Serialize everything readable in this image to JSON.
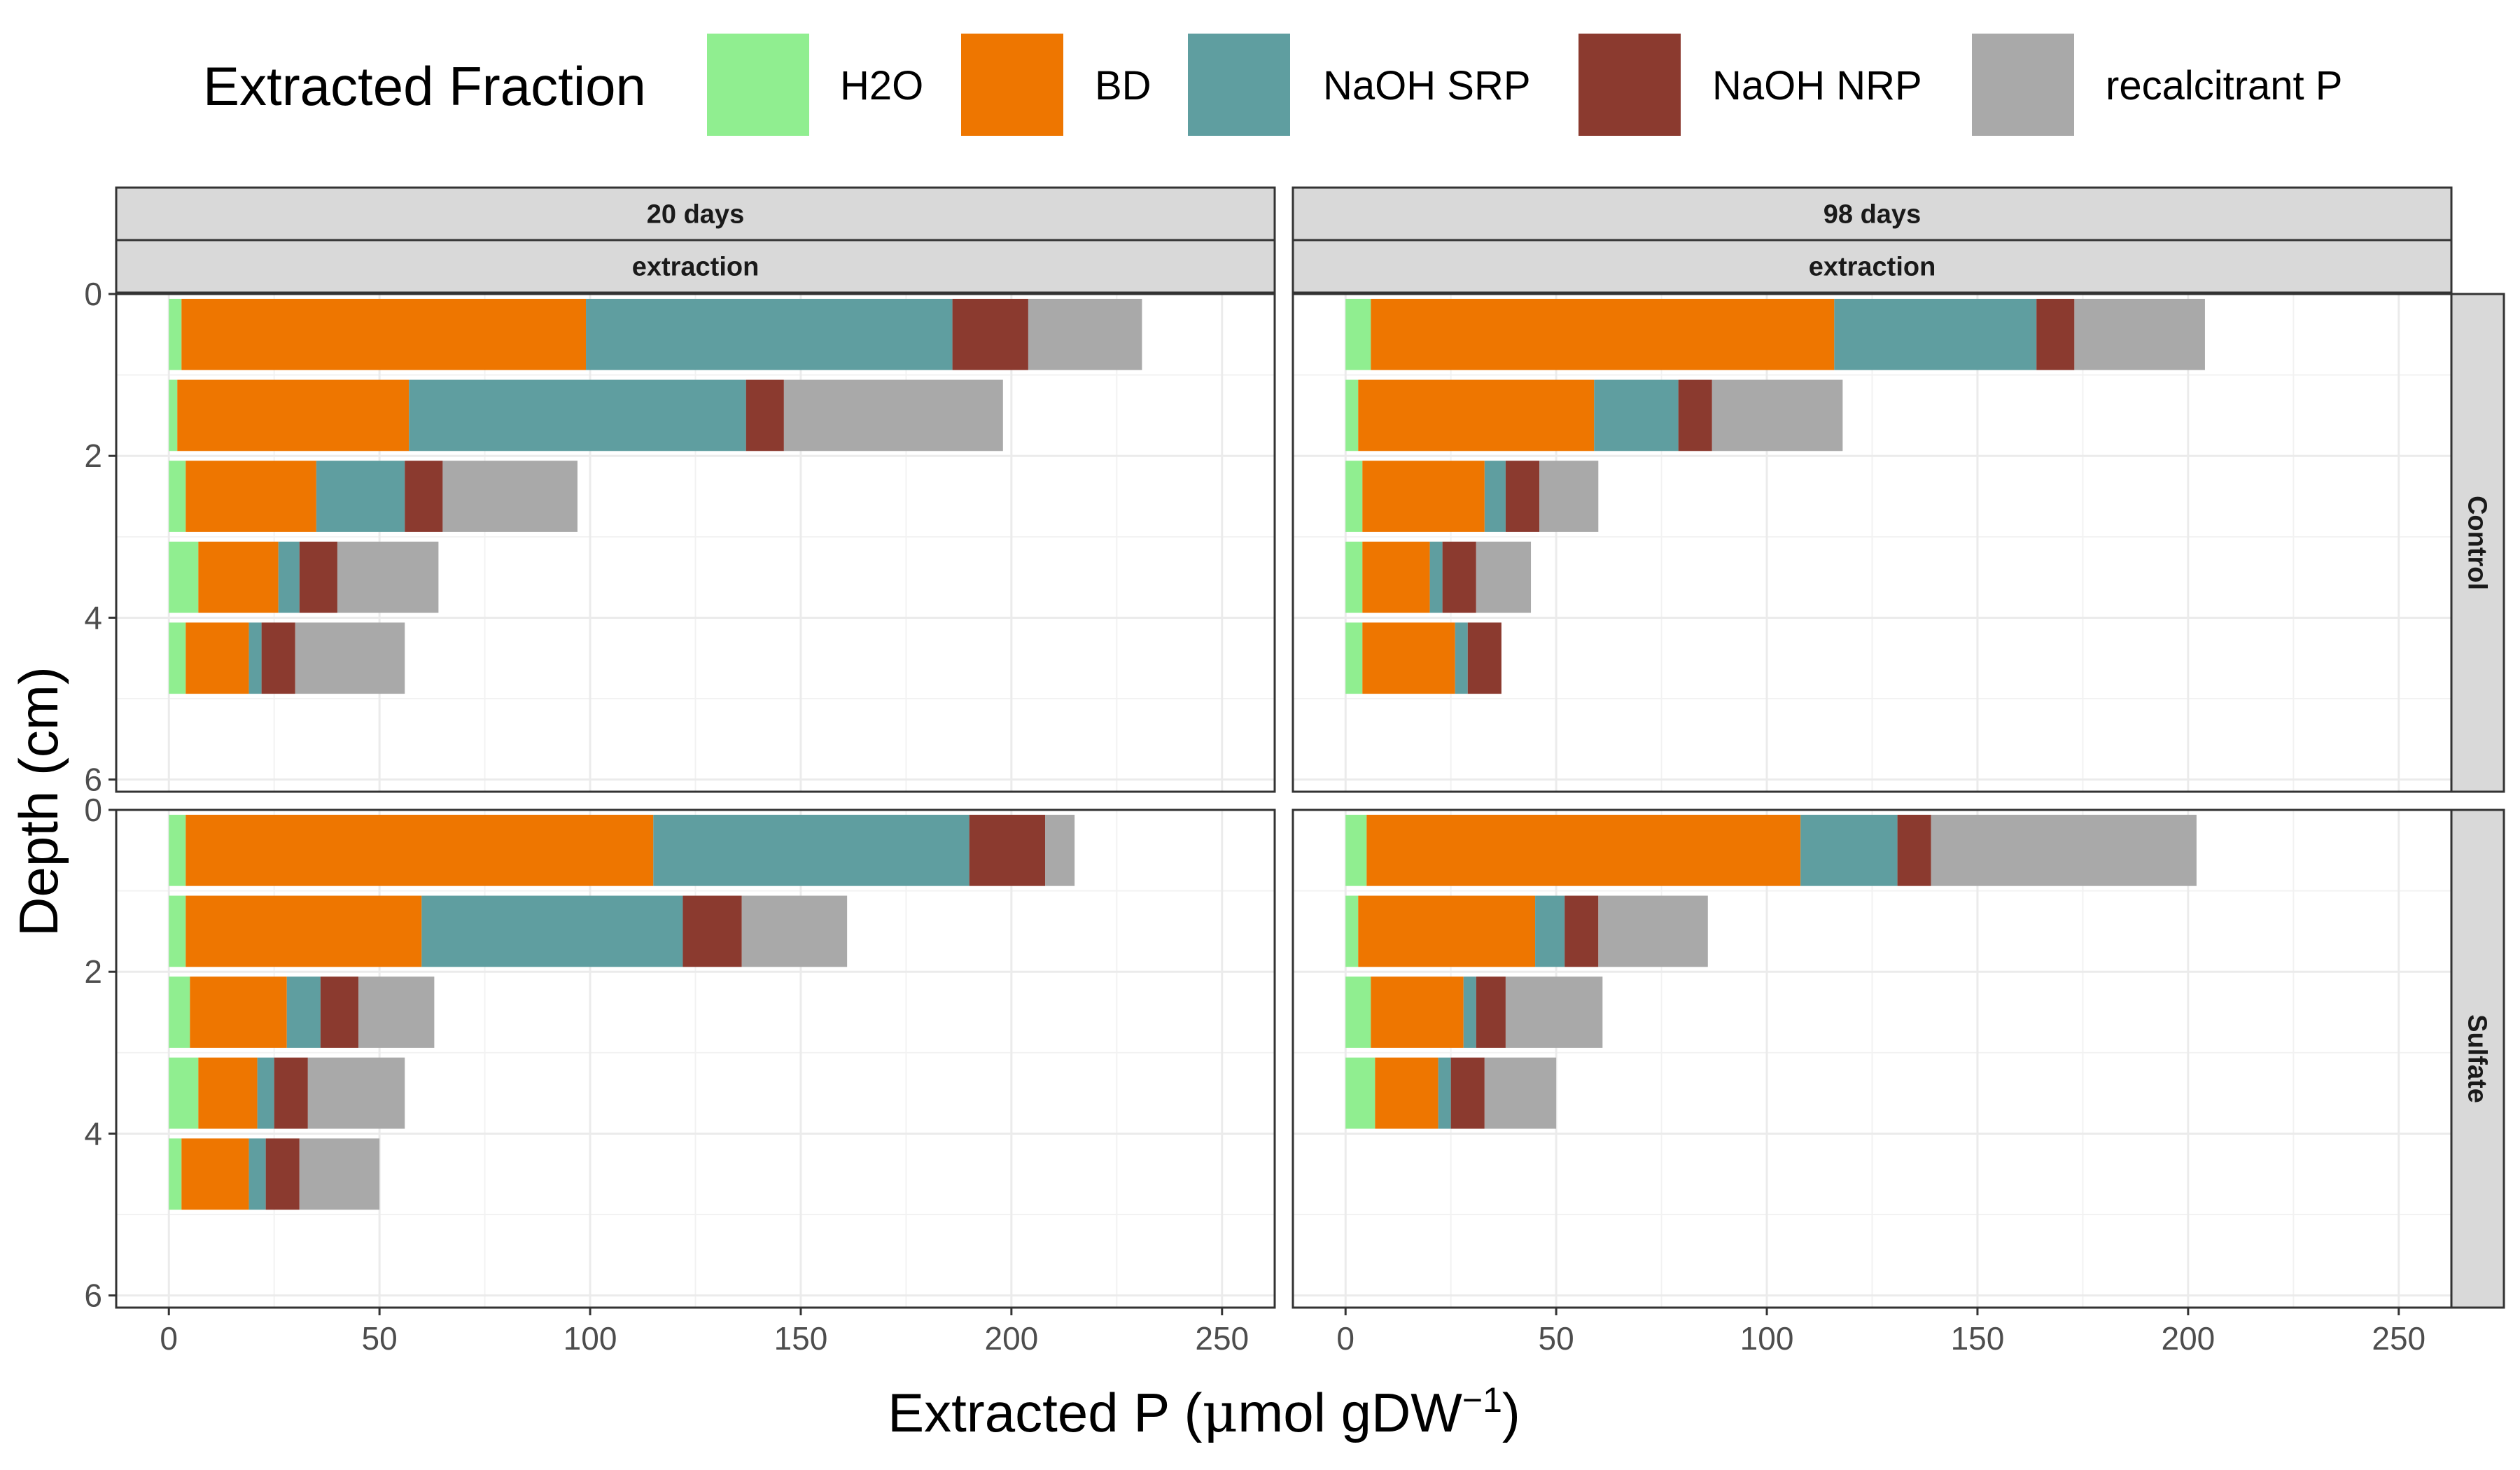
{
  "chart_data": {
    "type": "bar",
    "orientation": "horizontal",
    "stacked": true,
    "title": "",
    "xlabel_main": "Extracted P (",
    "xlabel_mu": "μ",
    "xlabel_unit": "mol gDW",
    "xlabel_sup": "−1",
    "xlabel_close": ")",
    "ylabel": "Depth (cm)",
    "xlim": [
      -12.5,
      262.5
    ],
    "ylim": [
      0,
      6.15
    ],
    "x_ticks": [
      0,
      50,
      100,
      150,
      200,
      250
    ],
    "y_ticks": [
      0,
      2,
      4,
      6
    ],
    "legend": {
      "title": "Extracted Fraction",
      "position": "top"
    },
    "series": [
      {
        "name": "H2O",
        "color": "#90EE90"
      },
      {
        "name": "BD",
        "color": "#EE7600"
      },
      {
        "name": "NaOH SRP",
        "color": "#5F9EA0"
      },
      {
        "name": "NaOH NRP",
        "color": "#8B3A2F"
      },
      {
        "name": "recalcitrant P",
        "color": "#A9A9A9"
      }
    ],
    "strip_row_label": "extraction",
    "panels": [
      {
        "col_label": "20 days",
        "row_label": "Control",
        "bars": [
          {
            "depth": 0.5,
            "values": [
              3,
              96,
              87,
              18,
              27
            ]
          },
          {
            "depth": 1.5,
            "values": [
              2,
              55,
              80,
              9,
              52
            ]
          },
          {
            "depth": 2.5,
            "values": [
              4,
              31,
              21,
              9,
              32
            ]
          },
          {
            "depth": 3.5,
            "values": [
              7,
              19,
              5,
              9,
              24
            ]
          },
          {
            "depth": 4.5,
            "values": [
              4,
              15,
              3,
              8,
              26
            ]
          }
        ]
      },
      {
        "col_label": "98 days",
        "row_label": "Control",
        "bars": [
          {
            "depth": 0.5,
            "values": [
              6,
              110,
              48,
              9,
              31
            ]
          },
          {
            "depth": 1.5,
            "values": [
              3,
              56,
              20,
              8,
              31
            ]
          },
          {
            "depth": 2.5,
            "values": [
              4,
              29,
              5,
              8,
              14
            ]
          },
          {
            "depth": 3.5,
            "values": [
              4,
              16,
              3,
              8,
              13
            ]
          },
          {
            "depth": 4.5,
            "values": [
              4,
              22,
              3,
              8,
              0
            ]
          }
        ]
      },
      {
        "col_label": "20 days",
        "row_label": "Sulfate",
        "bars": [
          {
            "depth": 0.5,
            "values": [
              4,
              111,
              75,
              18,
              7
            ]
          },
          {
            "depth": 1.5,
            "values": [
              4,
              56,
              62,
              14,
              25
            ]
          },
          {
            "depth": 2.5,
            "values": [
              5,
              23,
              8,
              9,
              18
            ]
          },
          {
            "depth": 3.5,
            "values": [
              7,
              14,
              4,
              8,
              23
            ]
          },
          {
            "depth": 4.5,
            "values": [
              3,
              16,
              4,
              8,
              19
            ]
          }
        ]
      },
      {
        "col_label": "98 days",
        "row_label": "Sulfate",
        "bars": [
          {
            "depth": 0.5,
            "values": [
              5,
              103,
              23,
              8,
              63
            ]
          },
          {
            "depth": 1.5,
            "values": [
              3,
              42,
              7,
              8,
              26
            ]
          },
          {
            "depth": 2.5,
            "values": [
              6,
              22,
              3,
              7,
              23
            ]
          },
          {
            "depth": 3.5,
            "values": [
              7,
              15,
              3,
              8,
              17
            ]
          },
          {
            "depth": 4.5,
            "values": [
              0,
              0,
              0,
              0,
              0
            ]
          }
        ]
      }
    ],
    "grid": true
  }
}
